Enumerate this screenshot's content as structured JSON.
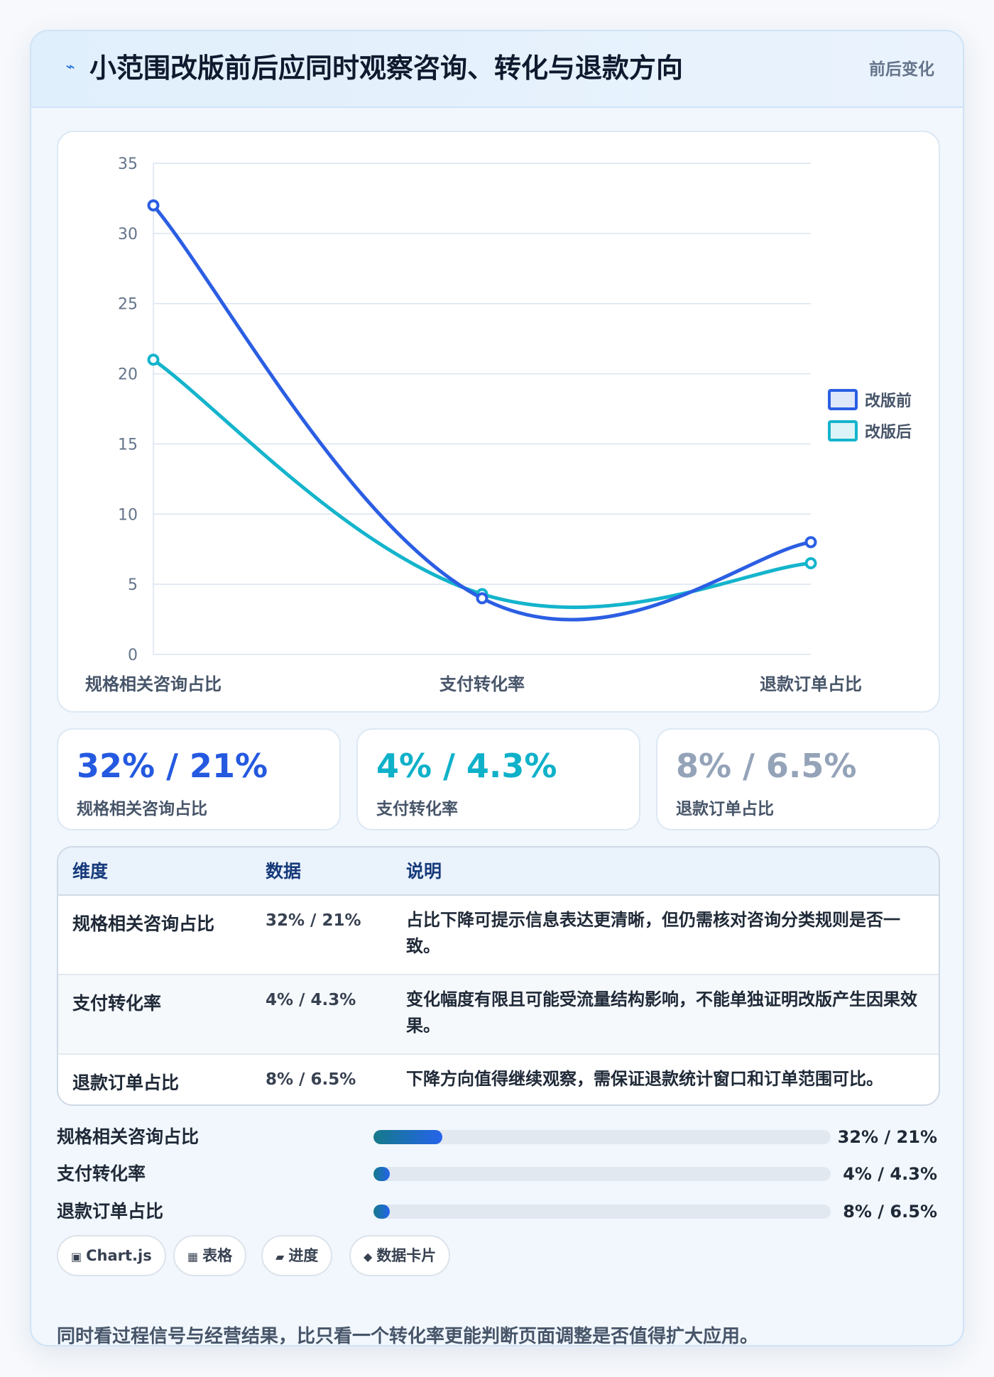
{
  "header": {
    "icon": "bolt-icon",
    "title": "小范围改版前后应同时观察咨询、转化与退款方向",
    "tag": "前后变化"
  },
  "chart_data": {
    "type": "line",
    "categories": [
      "规格相关咨询占比",
      "支付转化率",
      "退款订单占比"
    ],
    "series": [
      {
        "name": "改版前",
        "values": [
          32,
          4,
          8
        ],
        "color": "#2b5ee3"
      },
      {
        "name": "改版后",
        "values": [
          21,
          4.3,
          6.5
        ],
        "color": "#14b4cc"
      }
    ],
    "ylim": [
      0,
      35
    ],
    "yticks": [
      0,
      5,
      10,
      15,
      20,
      25,
      30,
      35
    ],
    "grid": true,
    "legend": "right",
    "title": "",
    "xlabel": "",
    "ylabel": ""
  },
  "stats": [
    {
      "value": "32% / 21%",
      "label": "规格相关咨询占比",
      "color": "#2459e0"
    },
    {
      "value": "4% / 4.3%",
      "label": "支付转化率",
      "color": "#0fb1c9"
    },
    {
      "value": "8% / 6.5%",
      "label": "退款订单占比",
      "color": "#94a3b8"
    }
  ],
  "table": {
    "headers": [
      "维度",
      "数据",
      "说明"
    ],
    "rows": [
      {
        "dim": "规格相关咨询占比",
        "val": "32% / 21%",
        "note": "占比下降可提示信息表达更清晰，但仍需核对咨询分类规则是否一致。"
      },
      {
        "dim": "支付转化率",
        "val": "4% / 4.3%",
        "note": "变化幅度有限且可能受流量结构影响，不能单独证明改版产生因果效果。"
      },
      {
        "dim": "退款订单占比",
        "val": "8% / 6.5%",
        "note": "下降方向值得继续观察，需保证退款统计窗口和订单范围可比。"
      }
    ]
  },
  "progress": [
    {
      "label": "规格相关咨询占比",
      "value": "32% / 21%",
      "fill": 0.15
    },
    {
      "label": "支付转化率",
      "value": "4% / 4.3%",
      "fill": 0.035
    },
    {
      "label": "退款订单占比",
      "value": "8% / 6.5%",
      "fill": 0.035
    }
  ],
  "pills": [
    {
      "icon": "▣",
      "label": "Chart.js"
    },
    {
      "icon": "▦",
      "label": "表格"
    },
    {
      "icon": "▰",
      "label": "进度"
    },
    {
      "icon": "◆",
      "label": "数据卡片"
    }
  ],
  "footnote": "同时看过程信号与经营结果，比只看一个转化率更能判断页面调整是否值得扩大应用。"
}
